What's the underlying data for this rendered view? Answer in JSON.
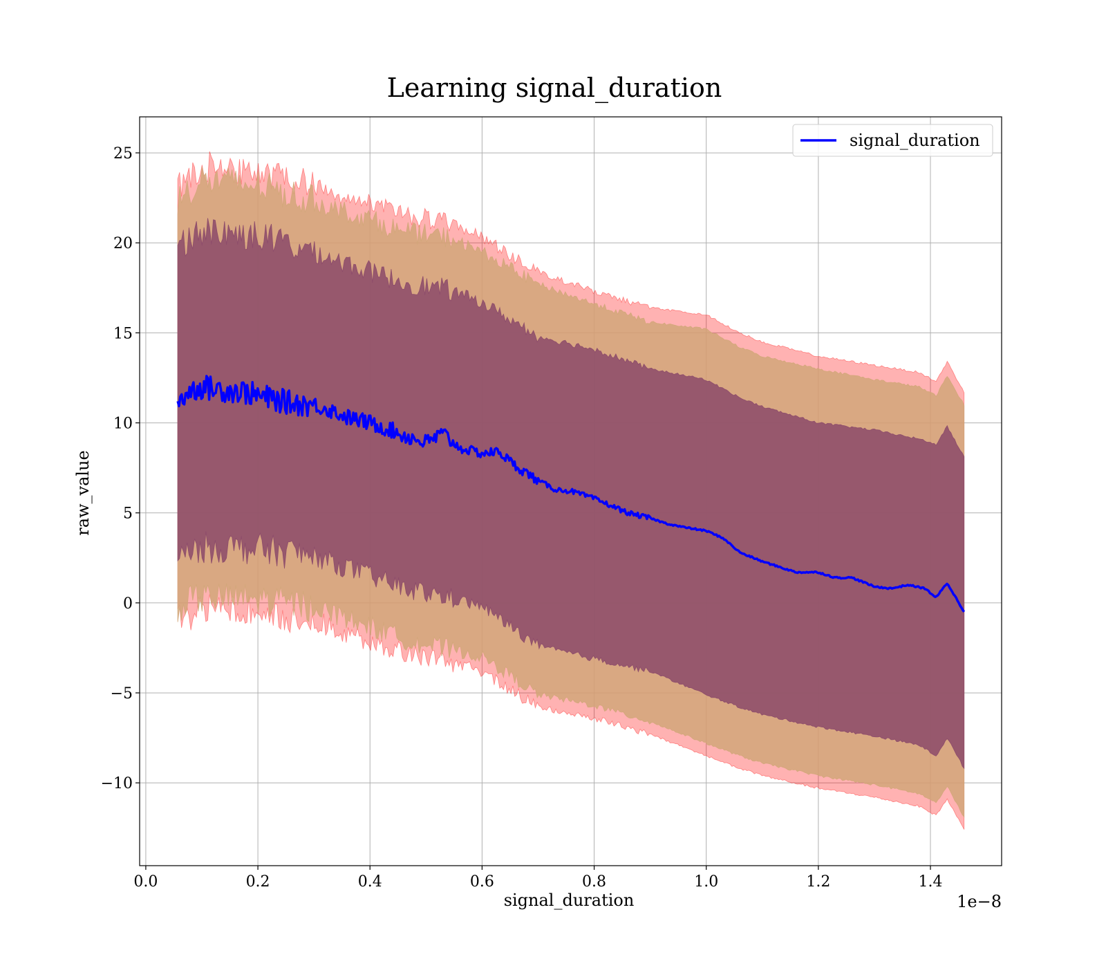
{
  "chart_data": {
    "type": "line",
    "title": "Learning signal_duration",
    "xlabel": "signal_duration",
    "ylabel": "raw_value",
    "x_offset_label": "1e−8",
    "xlim": [
      -0.011,
      1.527
    ],
    "ylim": [
      -14.6,
      27.0
    ],
    "grid": true,
    "legend_position": "top-right",
    "x_ticks": [
      {
        "value": 0.0,
        "label": "0.0"
      },
      {
        "value": 0.2,
        "label": "0.2"
      },
      {
        "value": 0.4,
        "label": "0.4"
      },
      {
        "value": 0.6,
        "label": "0.6"
      },
      {
        "value": 0.8,
        "label": "0.8"
      },
      {
        "value": 1.0,
        "label": "1.0"
      },
      {
        "value": 1.2,
        "label": "1.2"
      },
      {
        "value": 1.4,
        "label": "1.4"
      }
    ],
    "y_ticks": [
      {
        "value": 25,
        "label": "25"
      },
      {
        "value": 20,
        "label": "20"
      },
      {
        "value": 15,
        "label": "15"
      },
      {
        "value": 10,
        "label": "10"
      },
      {
        "value": 5,
        "label": "5"
      },
      {
        "value": 0,
        "label": "0"
      },
      {
        "value": -5,
        "label": "−5"
      },
      {
        "value": -10,
        "label": "−10"
      }
    ],
    "series": [
      {
        "name": "signal_duration",
        "color": "#0000ff",
        "x": [
          0.057,
          0.08,
          0.1,
          0.12,
          0.15,
          0.18,
          0.2,
          0.23,
          0.26,
          0.3,
          0.33,
          0.36,
          0.4,
          0.43,
          0.46,
          0.5,
          0.53,
          0.56,
          0.6,
          0.63,
          0.66,
          0.7,
          0.73,
          0.76,
          0.8,
          0.83,
          0.86,
          0.9,
          0.93,
          0.96,
          1.0,
          1.03,
          1.06,
          1.1,
          1.13,
          1.16,
          1.2,
          1.23,
          1.26,
          1.3,
          1.33,
          1.36,
          1.39,
          1.41,
          1.43,
          1.46
        ],
        "y": [
          11.2,
          11.8,
          12.0,
          11.9,
          11.8,
          11.7,
          11.5,
          11.3,
          11.1,
          11.0,
          10.7,
          10.3,
          10.0,
          9.7,
          9.3,
          8.9,
          9.4,
          8.6,
          8.3,
          8.4,
          7.6,
          6.8,
          6.3,
          6.2,
          5.8,
          5.4,
          5.0,
          4.7,
          4.4,
          4.2,
          4.0,
          3.6,
          2.8,
          2.3,
          2.0,
          1.7,
          1.7,
          1.4,
          1.4,
          0.9,
          0.8,
          1.0,
          0.8,
          0.3,
          1.1,
          -0.5
        ]
      }
    ],
    "bands": [
      {
        "color": "#ff0000",
        "opacity": 0.3,
        "x": [
          0.057,
          0.1,
          0.2,
          0.3,
          0.4,
          0.46,
          0.54,
          0.6,
          0.7,
          0.8,
          0.9,
          1.0,
          1.06,
          1.1,
          1.2,
          1.3,
          1.38,
          1.41,
          1.43,
          1.46
        ],
        "upper": [
          23.2,
          24.3,
          24.0,
          23.2,
          22.2,
          21.5,
          21.2,
          20.3,
          18.4,
          17.3,
          16.4,
          16.0,
          15.0,
          14.5,
          13.7,
          13.2,
          12.8,
          12.3,
          13.4,
          11.7
        ],
        "lower": [
          -0.9,
          -0.4,
          -0.5,
          -1.0,
          -2.1,
          -2.7,
          -3.3,
          -3.8,
          -5.8,
          -6.4,
          -7.3,
          -8.5,
          -9.2,
          -9.6,
          -10.3,
          -10.8,
          -11.3,
          -11.8,
          -10.9,
          -12.6
        ]
      },
      {
        "color": "#d2a679",
        "opacity": 0.85,
        "x": [
          0.057,
          0.1,
          0.2,
          0.3,
          0.4,
          0.46,
          0.54,
          0.6,
          0.7,
          0.8,
          0.9,
          1.0,
          1.06,
          1.1,
          1.2,
          1.3,
          1.38,
          1.41,
          1.43,
          1.46
        ],
        "upper": [
          22.4,
          23.5,
          23.2,
          22.3,
          21.3,
          20.6,
          20.3,
          19.5,
          17.7,
          16.6,
          15.6,
          15.2,
          14.2,
          13.7,
          13.0,
          12.4,
          12.0,
          11.5,
          12.6,
          11.0
        ],
        "lower": [
          -0.2,
          0.3,
          0.2,
          -0.2,
          -1.3,
          -2.0,
          -2.6,
          -3.0,
          -5.1,
          -5.7,
          -6.6,
          -7.8,
          -8.5,
          -8.9,
          -9.6,
          -10.1,
          -10.6,
          -11.1,
          -10.2,
          -11.9
        ]
      },
      {
        "color": "#8b4a6a",
        "opacity": 0.85,
        "x": [
          0.057,
          0.1,
          0.2,
          0.3,
          0.4,
          0.46,
          0.54,
          0.6,
          0.7,
          0.8,
          0.9,
          1.0,
          1.06,
          1.1,
          1.2,
          1.3,
          1.38,
          1.41,
          1.43,
          1.46
        ],
        "upper": [
          19.9,
          20.7,
          20.4,
          19.5,
          18.4,
          17.8,
          17.4,
          16.7,
          14.8,
          14.1,
          13.0,
          12.4,
          11.4,
          10.9,
          10.0,
          9.6,
          9.1,
          8.8,
          9.8,
          8.1
        ],
        "lower": [
          2.3,
          3.1,
          3.0,
          2.6,
          1.5,
          0.8,
          0.3,
          -0.2,
          -2.4,
          -3.1,
          -3.8,
          -5.1,
          -5.8,
          -6.2,
          -6.9,
          -7.4,
          -7.9,
          -8.5,
          -7.5,
          -9.2
        ]
      }
    ]
  }
}
